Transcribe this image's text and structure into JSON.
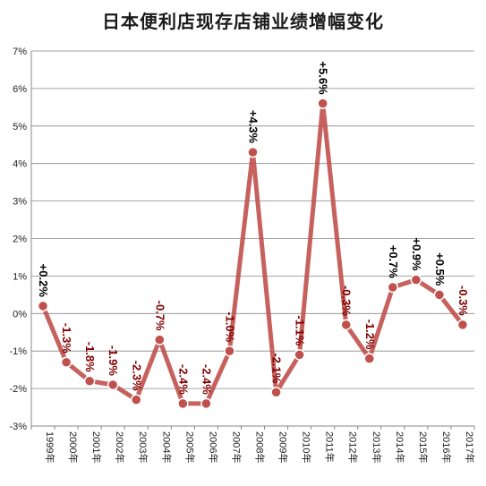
{
  "chart_data": {
    "type": "line",
    "title": "日本便利店现存店铺业绩增幅变化",
    "categories": [
      "1999年",
      "2000年",
      "2001年",
      "2002年",
      "2003年",
      "2004年",
      "2005年",
      "2006年",
      "2007年",
      "2008年",
      "2009年",
      "2010年",
      "2011年",
      "2012年",
      "2013年",
      "2014年",
      "2015年",
      "2016年",
      "2017年"
    ],
    "series": [
      {
        "values": [
          0.2,
          -1.3,
          -1.8,
          -1.9,
          -2.3,
          -0.7,
          -2.4,
          -2.4,
          -1.0,
          4.3,
          -2.1,
          -1.1,
          5.6,
          -0.3,
          -1.2,
          0.7,
          0.9,
          0.5,
          -0.3
        ]
      }
    ],
    "data_labels": [
      "+0.2%",
      "-1.3%",
      "-1.8%",
      "-1.9%",
      "-2.3%",
      "-0.7%",
      "-2.4%",
      "-2.4%",
      "-1.0%",
      "+4.3%",
      "-2.1%",
      "-1.1%",
      "+5.6%",
      "-0.3%",
      "-1.2%",
      "+0.7%",
      "+0.9%",
      "+0.5%",
      "-0.3%"
    ],
    "yticks": [
      "7%",
      "6%",
      "5%",
      "4%",
      "3%",
      "2%",
      "1%",
      "0%",
      "-1%",
      "-2%",
      "-3%"
    ],
    "ylim": [
      -3,
      7
    ],
    "grid": "horizontal",
    "colors": {
      "line": "#c0504d",
      "marker_fill": "#c0504d",
      "marker_stroke": "#ffffff",
      "label_positive": "#000000",
      "label_negative": "#7f0000",
      "grid": "#888888"
    }
  }
}
